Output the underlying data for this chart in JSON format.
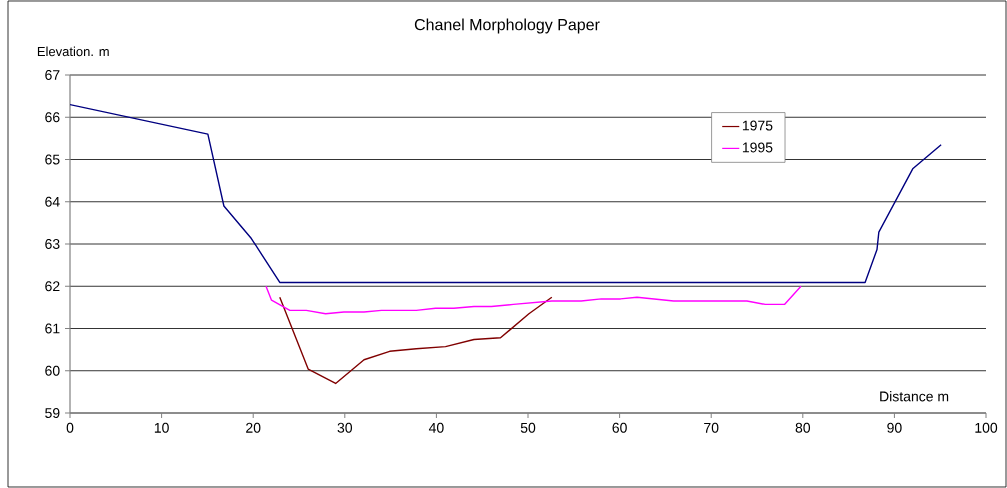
{
  "chart_data": {
    "type": "line",
    "title": "Chanel Morphology Paper",
    "xlabel": "Distance m",
    "ylabel": "Elevation. m",
    "series": [
      {
        "color": "#000080",
        "x": [
          0,
          15.05,
          16.8,
          19.8,
          22.9,
          86.8,
          88.1,
          88.3,
          92.0,
          95.1
        ],
        "values": [
          66.3,
          65.6,
          63.9,
          63.13,
          62.09,
          62.09,
          62.87,
          63.28,
          64.78,
          65.35
        ]
      },
      {
        "name": "1975",
        "color": "#800000",
        "x": [
          22.9,
          26.0,
          29.0,
          32.1,
          34.9,
          37.8,
          41.0,
          44.1,
          47.0,
          50.1,
          52.6
        ],
        "values": [
          61.74,
          60.04,
          59.7,
          60.26,
          60.46,
          60.52,
          60.57,
          60.74,
          60.78,
          61.35,
          61.74
        ]
      },
      {
        "name": "1995",
        "color": "#ff00ff",
        "x": [
          21.4,
          22.0,
          24.0,
          25.8,
          27.9,
          29.9,
          32.1,
          34.0,
          37.8,
          39.9,
          41.9,
          44.1,
          46.0,
          48.4,
          52.6,
          55.8,
          58.0,
          60.1,
          61.9,
          65.9,
          73.9,
          75.9,
          78.0,
          79.8
        ],
        "values": [
          62.0,
          61.67,
          61.43,
          61.43,
          61.35,
          61.39,
          61.39,
          61.43,
          61.43,
          61.48,
          61.48,
          61.52,
          61.52,
          61.57,
          61.65,
          61.65,
          61.7,
          61.7,
          61.74,
          61.65,
          61.65,
          61.57,
          61.57,
          62.0
        ]
      }
    ],
    "xlim": [
      0,
      100
    ],
    "xticks": [
      0,
      10,
      20,
      30,
      40,
      50,
      60,
      70,
      80,
      90,
      100
    ],
    "ylim": [
      59,
      67
    ],
    "yticks": [
      59,
      60,
      61,
      62,
      63,
      64,
      65,
      66,
      67
    ],
    "grid": "y",
    "legend": "top right",
    "marker": "none",
    "line_style": "solid"
  }
}
